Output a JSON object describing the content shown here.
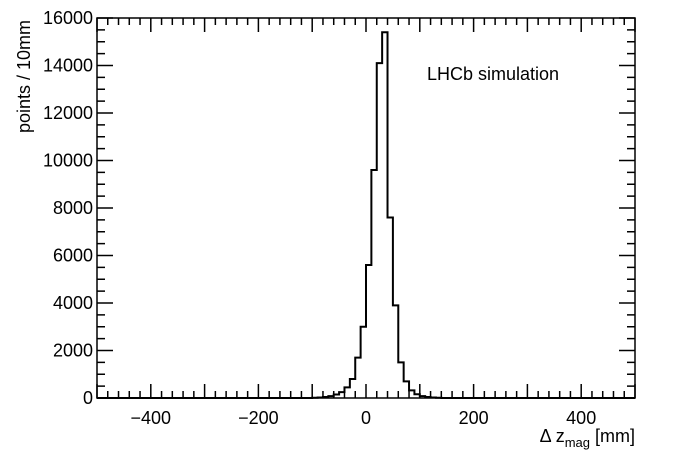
{
  "chart_data": {
    "type": "histogram",
    "annotation": "LHCb simulation",
    "xlabel_main": "Δ z",
    "xlabel_sub": "mag",
    "xlabel_unit": " [mm]",
    "ylabel": "points / 10mm",
    "xlim": [
      -500,
      500
    ],
    "ylim": [
      0,
      16000
    ],
    "x_ticks": [
      -400,
      -200,
      0,
      200,
      400
    ],
    "y_ticks": [
      0,
      2000,
      4000,
      6000,
      8000,
      10000,
      12000,
      14000,
      16000
    ],
    "x_tick_labels": [
      "−400",
      "−200",
      "0",
      "200",
      "400"
    ],
    "y_tick_labels": [
      "0",
      "2000",
      "4000",
      "6000",
      "8000",
      "10000",
      "12000",
      "14000",
      "16000"
    ],
    "bin_width": 10,
    "bin_start": -500,
    "values": [
      0,
      0,
      0,
      0,
      0,
      0,
      0,
      0,
      0,
      0,
      0,
      0,
      0,
      0,
      0,
      0,
      0,
      0,
      0,
      0,
      0,
      0,
      0,
      0,
      0,
      0,
      0,
      0,
      0,
      0,
      0,
      0,
      0,
      0,
      0,
      0,
      0,
      0,
      0,
      0,
      10,
      20,
      40,
      80,
      150,
      250,
      450,
      800,
      1700,
      3000,
      5600,
      9600,
      14100,
      15400,
      7600,
      3900,
      1500,
      700,
      320,
      160,
      80,
      40,
      20,
      10,
      0,
      0,
      0,
      0,
      0,
      0,
      0,
      0,
      0,
      0,
      0,
      0,
      0,
      0,
      0,
      0,
      0,
      0,
      0,
      0,
      0,
      0,
      0,
      0,
      0,
      0,
      0,
      0,
      0,
      0,
      0,
      0,
      0,
      0,
      0,
      0
    ],
    "line_color": "#000000"
  }
}
